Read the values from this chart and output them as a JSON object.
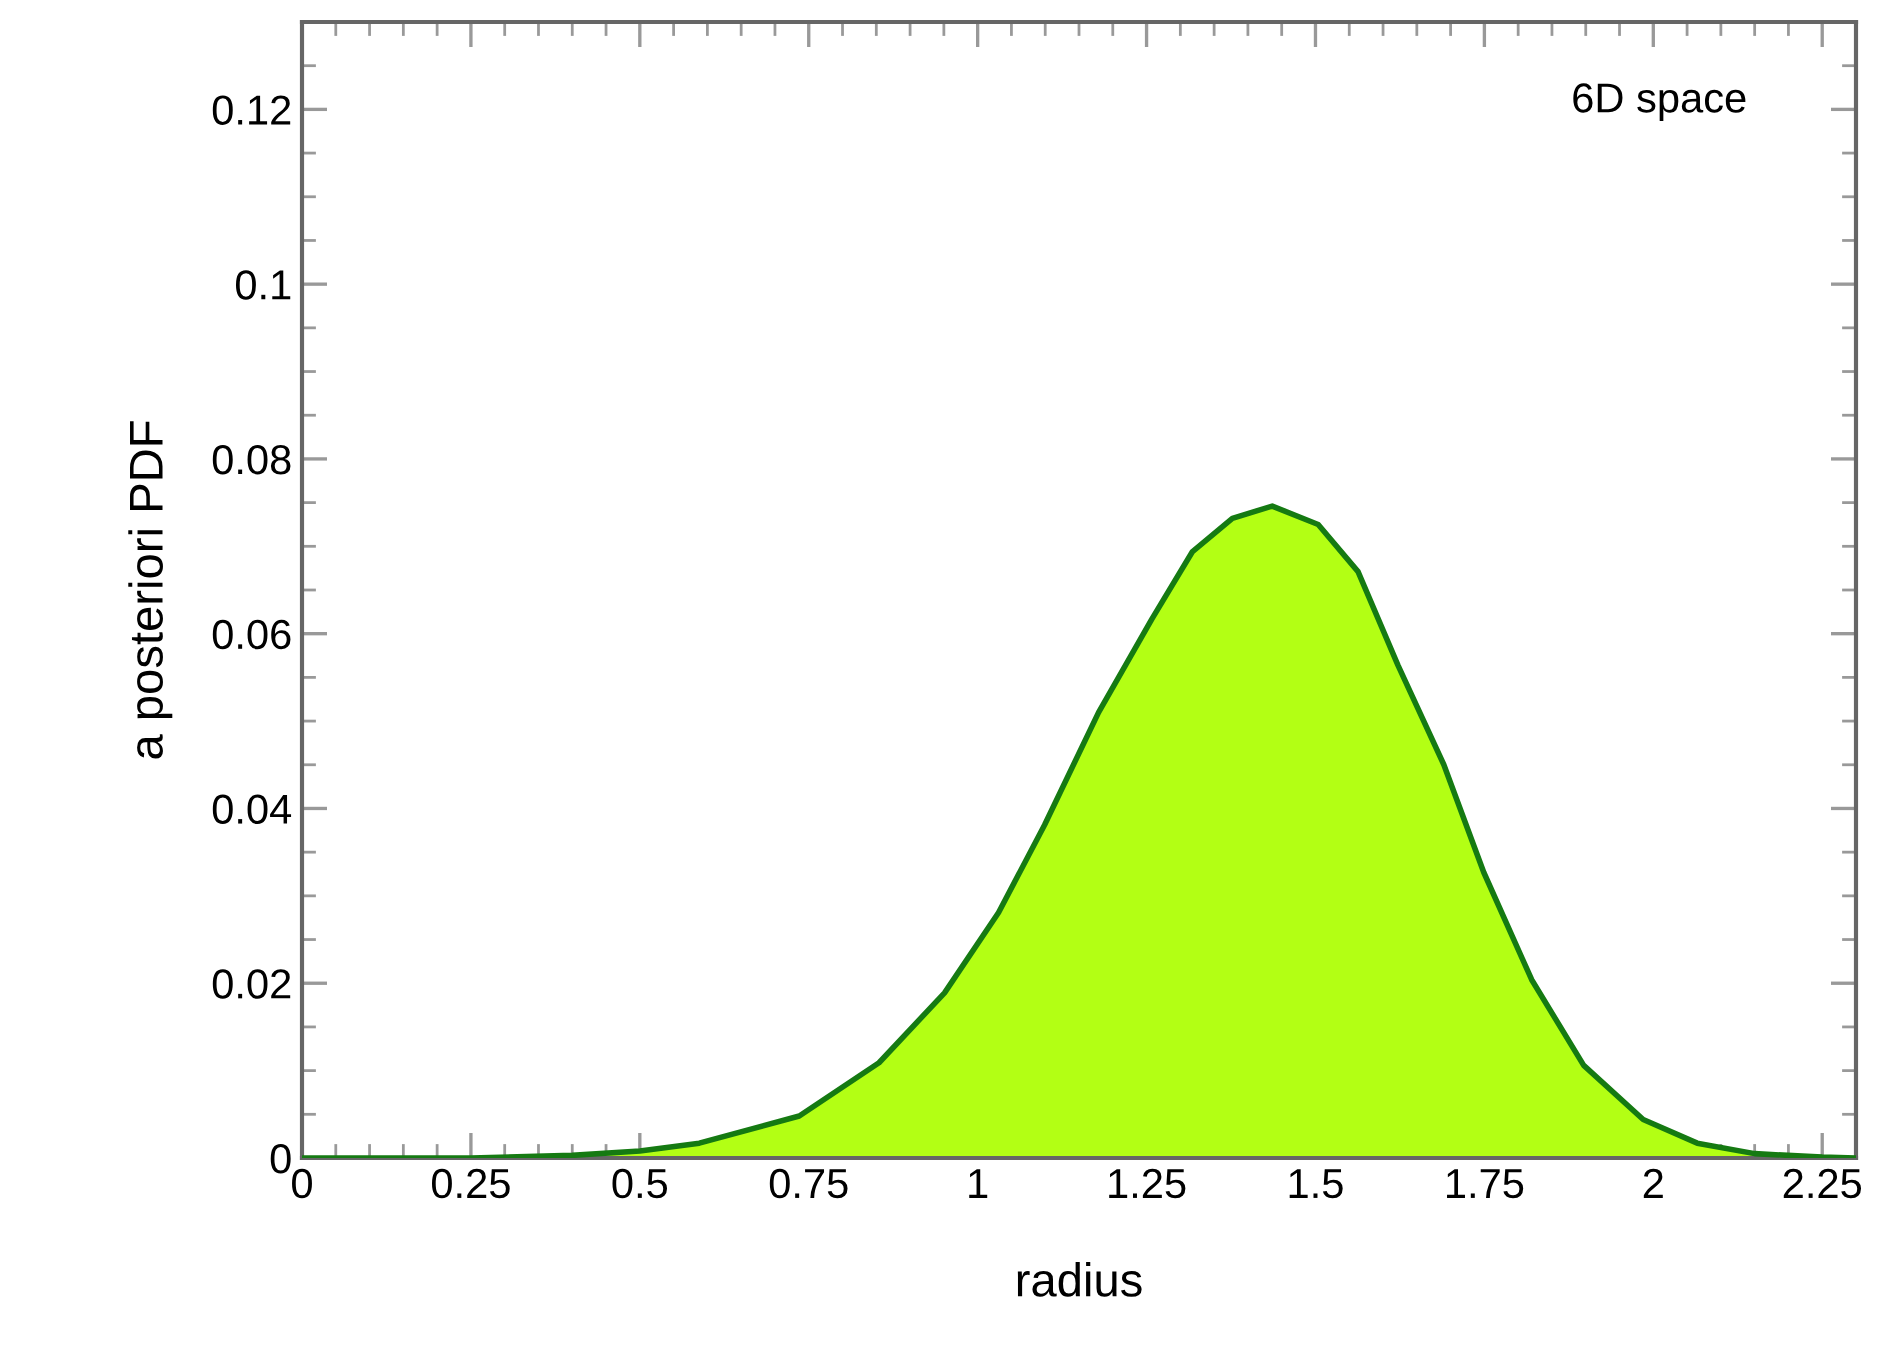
{
  "chart_data": {
    "type": "area",
    "xlabel": "radius",
    "ylabel": "a posteriori PDF",
    "annotations": [
      "6D space"
    ],
    "xlim": [
      0,
      2.3
    ],
    "xticks": [
      0,
      0.25,
      0.5,
      0.75,
      1,
      1.25,
      1.5,
      1.75,
      2,
      2.25
    ],
    "ylim": [
      0,
      0.13
    ],
    "yticks": [
      0,
      0.02,
      0.04,
      0.06,
      0.08,
      0.1,
      0.12
    ],
    "grid": false,
    "legend": false,
    "series": [
      {
        "color": "#b3ff14",
        "x": [
          0,
          0.25,
          0.4,
          0.5,
          0.588,
          0.736,
          0.854,
          0.951,
          1.031,
          1.099,
          1.179,
          1.258,
          1.318,
          1.377,
          1.436,
          1.504,
          1.563,
          1.622,
          1.69,
          1.749,
          1.82,
          1.897,
          1.985,
          2.065,
          2.15,
          2.25,
          2.3
        ],
        "values": [
          0,
          0,
          0.0003,
          0.0008,
          0.0017,
          0.0048,
          0.0109,
          0.0189,
          0.0281,
          0.0381,
          0.051,
          0.0617,
          0.0694,
          0.0732,
          0.0746,
          0.0725,
          0.0671,
          0.0564,
          0.045,
          0.0327,
          0.0204,
          0.0106,
          0.0044,
          0.0017,
          0.0005,
          0.0001,
          0
        ]
      }
    ]
  }
}
